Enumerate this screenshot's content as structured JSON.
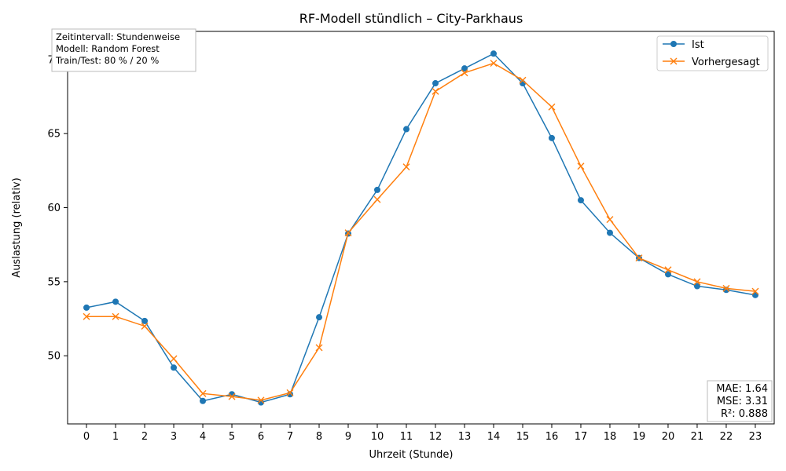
{
  "chart_data": {
    "type": "line",
    "title": "RF-Modell stündlich – City-Parkhaus",
    "xlabel": "Uhrzeit (Stunde)",
    "ylabel": "Auslastung (relativ)",
    "x": [
      0,
      1,
      2,
      3,
      4,
      5,
      6,
      7,
      8,
      9,
      10,
      11,
      12,
      13,
      14,
      15,
      16,
      17,
      18,
      19,
      20,
      21,
      22,
      23
    ],
    "xlim": [
      -0.65,
      23.65
    ],
    "ylim": [
      45.4,
      71.9
    ],
    "yticks": [
      50,
      55,
      60,
      65,
      70
    ],
    "series": [
      {
        "name": "Ist",
        "color": "#1f77b4",
        "marker": "circle",
        "values": [
          53.25,
          53.65,
          52.35,
          49.2,
          46.95,
          47.4,
          46.85,
          47.4,
          52.6,
          58.25,
          61.2,
          65.3,
          68.4,
          69.4,
          70.4,
          68.4,
          64.7,
          60.5,
          58.3,
          56.6,
          55.5,
          54.7,
          54.45,
          54.1
        ]
      },
      {
        "name": "Vorhergesagt",
        "color": "#ff7f0e",
        "marker": "x",
        "values": [
          52.65,
          52.65,
          52.0,
          49.8,
          47.45,
          47.25,
          47.0,
          47.5,
          50.55,
          58.3,
          60.55,
          62.75,
          67.85,
          69.1,
          69.75,
          68.6,
          66.8,
          62.8,
          59.2,
          56.6,
          55.8,
          55.0,
          54.55,
          54.35
        ]
      }
    ],
    "legend": {
      "position": "top-right",
      "entries": [
        "Ist",
        "Vorhergesagt"
      ]
    },
    "grid": false,
    "annotations": {
      "info_box": {
        "position": "top-left",
        "lines": [
          "Zeitintervall: Stundenweise",
          "Modell: Random Forest",
          "Train/Test: 80 % / 20 %"
        ]
      },
      "metrics_box": {
        "position": "bottom-right",
        "lines": [
          "MAE: 1.64",
          "MSE: 3.31",
          "R²: 0.888"
        ]
      }
    }
  }
}
